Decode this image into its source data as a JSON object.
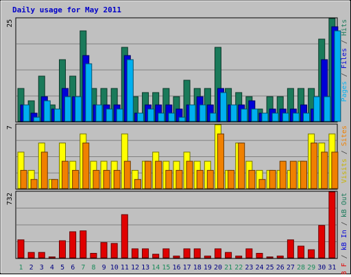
{
  "chart_data": [
    {
      "type": "bar",
      "title": "Daily usage for May 2011",
      "panel": "top",
      "axis_max_label": "25",
      "right_label_parts": [
        {
          "text": "Pages",
          "color": "#00b0f0"
        },
        {
          "text": " / ",
          "color": "#404040"
        },
        {
          "text": "Files",
          "color": "#0000d8"
        },
        {
          "text": " / ",
          "color": "#404040"
        },
        {
          "text": "Hits",
          "color": "#1a7a5a"
        }
      ],
      "ylim": [
        0,
        25
      ],
      "grid": true,
      "categories": [
        "1",
        "2",
        "3",
        "4",
        "5",
        "6",
        "7",
        "8",
        "9",
        "10",
        "11",
        "12",
        "13",
        "14",
        "15",
        "16",
        "17",
        "18",
        "19",
        "20",
        "21",
        "22",
        "23",
        "24",
        "25",
        "26",
        "27",
        "28",
        "29",
        "30",
        "31"
      ],
      "weekend_days": [
        "1",
        "7",
        "8",
        "14",
        "15",
        "21",
        "22",
        "28",
        "29"
      ],
      "series": [
        {
          "name": "Hits",
          "color": "#1a7a5a",
          "values": [
            8,
            5,
            11,
            4,
            15,
            11,
            22,
            8,
            8,
            8,
            18,
            6,
            7,
            7,
            8,
            6,
            10,
            8,
            8,
            18,
            8,
            7,
            6,
            3,
            6,
            6,
            8,
            8,
            8,
            20,
            25
          ]
        },
        {
          "name": "Files",
          "color": "#0000d8",
          "values": [
            4,
            2,
            6,
            3,
            8,
            6,
            16,
            4,
            4,
            4,
            16,
            2,
            4,
            4,
            4,
            3,
            4,
            6,
            4,
            8,
            4,
            4,
            5,
            2,
            3,
            3,
            3,
            4,
            3,
            15,
            23
          ]
        },
        {
          "name": "Pages",
          "color": "#00b0f0",
          "values": [
            4,
            1,
            5,
            3,
            6,
            6,
            14,
            4,
            3,
            3,
            15,
            2,
            3,
            2,
            2,
            1,
            4,
            4,
            2,
            7,
            4,
            3,
            3,
            2,
            2,
            2,
            2,
            2,
            6,
            6,
            22
          ]
        }
      ]
    },
    {
      "type": "bar",
      "panel": "middle",
      "axis_max_label": "7",
      "right_label_parts": [
        {
          "text": "Visits",
          "color": "#c8b400"
        },
        {
          "text": " / ",
          "color": "#404040"
        },
        {
          "text": "Sites",
          "color": "#f08000"
        }
      ],
      "ylim": [
        0,
        7
      ],
      "grid": true,
      "categories": [
        "1",
        "2",
        "3",
        "4",
        "5",
        "6",
        "7",
        "8",
        "9",
        "10",
        "11",
        "12",
        "13",
        "14",
        "15",
        "16",
        "17",
        "18",
        "19",
        "20",
        "21",
        "22",
        "23",
        "24",
        "25",
        "26",
        "27",
        "28",
        "29",
        "30",
        "31"
      ],
      "series": [
        {
          "name": "Visits",
          "color": "#ffff00",
          "values": [
            4,
            2,
            5,
            1,
            5,
            3,
            6,
            3,
            3,
            3,
            6,
            2,
            3,
            4,
            3,
            3,
            4,
            3,
            3,
            7,
            2,
            5,
            3,
            2,
            2,
            2,
            2,
            3,
            6,
            5,
            6
          ]
        },
        {
          "name": "Sites",
          "color": "#f08000",
          "values": [
            2,
            1,
            4,
            1,
            3,
            2,
            5,
            2,
            2,
            2,
            3,
            1,
            3,
            3,
            2,
            2,
            3,
            2,
            2,
            6,
            2,
            5,
            2,
            1,
            2,
            3,
            3,
            3,
            5,
            4,
            4
          ]
        }
      ]
    },
    {
      "type": "bar",
      "panel": "bottom",
      "axis_max_label": "732",
      "right_label_parts": [
        {
          "text": "kB F",
          "color": "#e00000"
        },
        {
          "text": " / ",
          "color": "#404040"
        },
        {
          "text": "kB In",
          "color": "#0000d8"
        },
        {
          "text": " / ",
          "color": "#404040"
        },
        {
          "text": "kB Out",
          "color": "#1a7a5a"
        }
      ],
      "ylim": [
        0,
        732
      ],
      "grid": true,
      "categories": [
        "1",
        "2",
        "3",
        "4",
        "5",
        "6",
        "7",
        "8",
        "9",
        "10",
        "11",
        "12",
        "13",
        "14",
        "15",
        "16",
        "17",
        "18",
        "19",
        "20",
        "21",
        "22",
        "23",
        "24",
        "25",
        "26",
        "27",
        "28",
        "29",
        "30",
        "31"
      ],
      "series": [
        {
          "name": "kB F",
          "color": "#e00000",
          "values": [
            200,
            60,
            60,
            10,
            190,
            290,
            300,
            50,
            170,
            160,
            480,
            100,
            100,
            40,
            100,
            20,
            100,
            100,
            20,
            100,
            60,
            20,
            100,
            50,
            10,
            20,
            200,
            130,
            90,
            360,
            732
          ]
        }
      ]
    }
  ]
}
